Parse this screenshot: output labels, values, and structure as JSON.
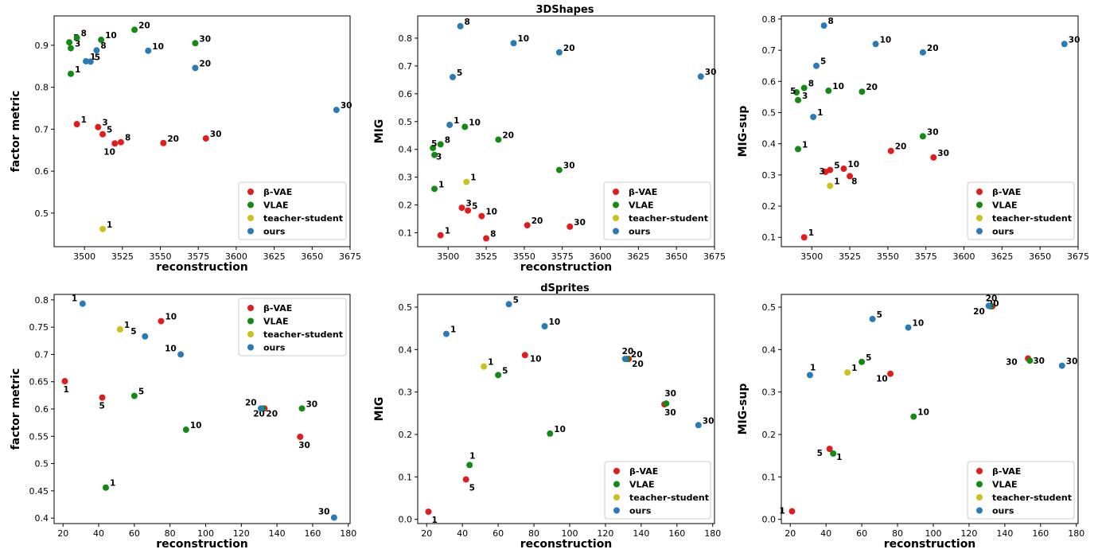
{
  "colors": {
    "beta_vae": "#e41a1c",
    "vlae": "#138a13",
    "teacher_student": "#c8c21a",
    "ours": "#2a7ab5"
  },
  "legend": [
    {
      "key": "beta_vae",
      "label": "β-VAE"
    },
    {
      "key": "vlae",
      "label": "VLAE"
    },
    {
      "key": "teacher_student",
      "label": "teacher-student"
    },
    {
      "key": "ours",
      "label": "ours"
    }
  ],
  "row_titles": {
    "top": "3DShapes",
    "bottom": "dSprites"
  },
  "chart_data": [
    {
      "type": "scatter",
      "dataset": "3DShapes",
      "xlabel": "reconstruction",
      "ylabel": "factor metric",
      "xlim": [
        3480,
        3675
      ],
      "ylim": [
        0.42,
        0.97
      ],
      "xticks": [
        3500,
        3525,
        3550,
        3575,
        3600,
        3625,
        3650,
        3675
      ],
      "yticks": [
        0.5,
        0.6,
        0.7,
        0.8,
        0.9
      ],
      "legend_position": "lower-right",
      "series": [
        {
          "name": "β-VAE",
          "color_key": "beta_vae",
          "points": [
            {
              "x": 3495,
              "y": 0.712,
              "label": "1"
            },
            {
              "x": 3509,
              "y": 0.705,
              "label": "3"
            },
            {
              "x": 3512,
              "y": 0.688,
              "label": "5"
            },
            {
              "x": 3524,
              "y": 0.669,
              "label": "8"
            },
            {
              "x": 3520,
              "y": 0.666,
              "label": "10"
            },
            {
              "x": 3552,
              "y": 0.667,
              "label": "20"
            },
            {
              "x": 3580,
              "y": 0.678,
              "label": "30"
            }
          ]
        },
        {
          "name": "VLAE",
          "color_key": "vlae",
          "points": [
            {
              "x": 3491,
              "y": 0.832,
              "label": "1"
            },
            {
              "x": 3491,
              "y": 0.893,
              "label": "3"
            },
            {
              "x": 3490,
              "y": 0.907,
              "label": "5"
            },
            {
              "x": 3495,
              "y": 0.918,
              "label": "8"
            },
            {
              "x": 3511,
              "y": 0.913,
              "label": "10"
            },
            {
              "x": 3533,
              "y": 0.937,
              "label": "20"
            },
            {
              "x": 3573,
              "y": 0.905,
              "label": "30"
            }
          ]
        },
        {
          "name": "teacher-student",
          "color_key": "teacher_student",
          "points": [
            {
              "x": 3512,
              "y": 0.462,
              "label": "1"
            }
          ]
        },
        {
          "name": "ours",
          "color_key": "ours",
          "points": [
            {
              "x": 3501,
              "y": 0.862,
              "label": "1"
            },
            {
              "x": 3504,
              "y": 0.861,
              "label": "5"
            },
            {
              "x": 3508,
              "y": 0.888,
              "label": "8"
            },
            {
              "x": 3542,
              "y": 0.887,
              "label": "10"
            },
            {
              "x": 3573,
              "y": 0.846,
              "label": "20"
            },
            {
              "x": 3666,
              "y": 0.746,
              "label": "30"
            }
          ]
        }
      ]
    },
    {
      "type": "scatter",
      "dataset": "3DShapes",
      "xlabel": "reconstruction",
      "ylabel": "MIG",
      "xlim": [
        3480,
        3675
      ],
      "ylim": [
        0.05,
        0.88
      ],
      "xticks": [
        3500,
        3525,
        3550,
        3575,
        3600,
        3625,
        3650,
        3675
      ],
      "yticks": [
        0.1,
        0.2,
        0.3,
        0.4,
        0.5,
        0.6,
        0.7,
        0.8
      ],
      "legend_position": "lower-right",
      "series": [
        {
          "name": "β-VAE",
          "color_key": "beta_vae",
          "points": [
            {
              "x": 3495,
              "y": 0.091,
              "label": "1"
            },
            {
              "x": 3509,
              "y": 0.19,
              "label": "3"
            },
            {
              "x": 3513,
              "y": 0.18,
              "label": "5"
            },
            {
              "x": 3525,
              "y": 0.08,
              "label": "8"
            },
            {
              "x": 3522,
              "y": 0.16,
              "label": "10"
            },
            {
              "x": 3552,
              "y": 0.127,
              "label": "20"
            },
            {
              "x": 3580,
              "y": 0.122,
              "label": "30"
            }
          ]
        },
        {
          "name": "VLAE",
          "color_key": "vlae",
          "points": [
            {
              "x": 3491,
              "y": 0.258,
              "label": "1"
            },
            {
              "x": 3491,
              "y": 0.38,
              "label": "3"
            },
            {
              "x": 3490,
              "y": 0.405,
              "label": "5"
            },
            {
              "x": 3495,
              "y": 0.418,
              "label": "8"
            },
            {
              "x": 3511,
              "y": 0.481,
              "label": "10"
            },
            {
              "x": 3533,
              "y": 0.435,
              "label": "20"
            },
            {
              "x": 3573,
              "y": 0.326,
              "label": "30"
            }
          ]
        },
        {
          "name": "teacher-student",
          "color_key": "teacher_student",
          "points": [
            {
              "x": 3512,
              "y": 0.283,
              "label": "1"
            }
          ]
        },
        {
          "name": "ours",
          "color_key": "ours",
          "points": [
            {
              "x": 3501,
              "y": 0.488,
              "label": "1"
            },
            {
              "x": 3503,
              "y": 0.66,
              "label": "5"
            },
            {
              "x": 3508,
              "y": 0.843,
              "label": "8"
            },
            {
              "x": 3543,
              "y": 0.782,
              "label": "10"
            },
            {
              "x": 3573,
              "y": 0.749,
              "label": "20"
            },
            {
              "x": 3666,
              "y": 0.662,
              "label": "30"
            }
          ]
        }
      ]
    },
    {
      "type": "scatter",
      "dataset": "3DShapes",
      "xlabel": "",
      "ylabel": "MIG-sup",
      "xlim": [
        3480,
        3675
      ],
      "ylim": [
        0.07,
        0.81
      ],
      "xticks": [
        3500,
        3525,
        3550,
        3575,
        3600,
        3625,
        3650,
        3675
      ],
      "yticks": [
        0.1,
        0.2,
        0.3,
        0.4,
        0.5,
        0.6,
        0.7,
        0.8
      ],
      "legend_position": "lower-right",
      "series": [
        {
          "name": "β-VAE",
          "color_key": "beta_vae",
          "points": [
            {
              "x": 3495,
              "y": 0.1,
              "label": "1"
            },
            {
              "x": 3509,
              "y": 0.31,
              "label": "3"
            },
            {
              "x": 3512,
              "y": 0.316,
              "label": "5"
            },
            {
              "x": 3525,
              "y": 0.296,
              "label": "8"
            },
            {
              "x": 3521,
              "y": 0.32,
              "label": "10"
            },
            {
              "x": 3552,
              "y": 0.377,
              "label": "20"
            },
            {
              "x": 3580,
              "y": 0.356,
              "label": "30"
            }
          ]
        },
        {
          "name": "VLAE",
          "color_key": "vlae",
          "points": [
            {
              "x": 3491,
              "y": 0.383,
              "label": "1"
            },
            {
              "x": 3491,
              "y": 0.54,
              "label": "3"
            },
            {
              "x": 3490,
              "y": 0.565,
              "label": "5"
            },
            {
              "x": 3495,
              "y": 0.579,
              "label": "8"
            },
            {
              "x": 3511,
              "y": 0.57,
              "label": "10"
            },
            {
              "x": 3533,
              "y": 0.567,
              "label": "20"
            },
            {
              "x": 3573,
              "y": 0.424,
              "label": "30"
            }
          ]
        },
        {
          "name": "teacher-student",
          "color_key": "teacher_student",
          "points": [
            {
              "x": 3512,
              "y": 0.265,
              "label": "1"
            }
          ]
        },
        {
          "name": "ours",
          "color_key": "ours",
          "points": [
            {
              "x": 3501,
              "y": 0.486,
              "label": "1"
            },
            {
              "x": 3503,
              "y": 0.65,
              "label": "5"
            },
            {
              "x": 3508,
              "y": 0.779,
              "label": "8"
            },
            {
              "x": 3542,
              "y": 0.72,
              "label": "10"
            },
            {
              "x": 3573,
              "y": 0.693,
              "label": "20"
            },
            {
              "x": 3666,
              "y": 0.72,
              "label": "30"
            }
          ]
        }
      ]
    },
    {
      "type": "scatter",
      "dataset": "dSprites",
      "xlabel": "reconstruction",
      "ylabel": "factor metric",
      "xlim": [
        15,
        181
      ],
      "ylim": [
        0.39,
        0.81
      ],
      "xticks": [
        20,
        40,
        60,
        80,
        100,
        120,
        140,
        160,
        180
      ],
      "yticks": [
        0.4,
        0.45,
        0.5,
        0.55,
        0.6,
        0.65,
        0.7,
        0.75,
        0.8
      ],
      "legend_position": "upper-center",
      "series": [
        {
          "name": "β-VAE",
          "color_key": "beta_vae",
          "points": [
            {
              "x": 21,
              "y": 0.651,
              "label": "1"
            },
            {
              "x": 42,
              "y": 0.621,
              "label": "5"
            },
            {
              "x": 75,
              "y": 0.761,
              "label": "10"
            },
            {
              "x": 133,
              "y": 0.601,
              "label": "20"
            },
            {
              "x": 153,
              "y": 0.549,
              "label": "30"
            }
          ]
        },
        {
          "name": "VLAE",
          "color_key": "vlae",
          "points": [
            {
              "x": 44,
              "y": 0.456,
              "label": "1"
            },
            {
              "x": 60,
              "y": 0.624,
              "label": "5"
            },
            {
              "x": 89,
              "y": 0.562,
              "label": "10"
            },
            {
              "x": 132,
              "y": 0.601,
              "label": "20"
            },
            {
              "x": 154,
              "y": 0.601,
              "label": "30"
            }
          ]
        },
        {
          "name": "teacher-student",
          "color_key": "teacher_student",
          "points": [
            {
              "x": 52,
              "y": 0.746,
              "label": "1"
            }
          ]
        },
        {
          "name": "ours",
          "color_key": "ours",
          "points": [
            {
              "x": 31,
              "y": 0.793,
              "label": "1"
            },
            {
              "x": 66,
              "y": 0.733,
              "label": "5"
            },
            {
              "x": 86,
              "y": 0.7,
              "label": "10"
            },
            {
              "x": 131,
              "y": 0.601,
              "label": "20"
            },
            {
              "x": 172,
              "y": 0.401,
              "label": "30"
            }
          ]
        }
      ]
    },
    {
      "type": "scatter",
      "dataset": "dSprites",
      "xlabel": "reconstruction",
      "ylabel": "MIG",
      "xlim": [
        15,
        181
      ],
      "ylim": [
        -0.01,
        0.53
      ],
      "xticks": [
        20,
        40,
        60,
        80,
        100,
        120,
        140,
        160,
        180
      ],
      "yticks": [
        0.0,
        0.1,
        0.2,
        0.3,
        0.4,
        0.5
      ],
      "legend_position": "lower-right",
      "series": [
        {
          "name": "β-VAE",
          "color_key": "beta_vae",
          "points": [
            {
              "x": 21,
              "y": 0.018,
              "label": "1"
            },
            {
              "x": 42,
              "y": 0.094,
              "label": "5"
            },
            {
              "x": 75,
              "y": 0.387,
              "label": "10"
            },
            {
              "x": 133,
              "y": 0.378,
              "label": "20"
            },
            {
              "x": 153,
              "y": 0.271,
              "label": "30"
            }
          ]
        },
        {
          "name": "VLAE",
          "color_key": "vlae",
          "points": [
            {
              "x": 44,
              "y": 0.128,
              "label": "1"
            },
            {
              "x": 60,
              "y": 0.34,
              "label": "5"
            },
            {
              "x": 89,
              "y": 0.202,
              "label": "10"
            },
            {
              "x": 132,
              "y": 0.378,
              "label": "20"
            },
            {
              "x": 154,
              "y": 0.273,
              "label": "30"
            }
          ]
        },
        {
          "name": "teacher-student",
          "color_key": "teacher_student",
          "points": [
            {
              "x": 52,
              "y": 0.36,
              "label": "1"
            }
          ]
        },
        {
          "name": "ours",
          "color_key": "ours",
          "points": [
            {
              "x": 31,
              "y": 0.437,
              "label": "1"
            },
            {
              "x": 66,
              "y": 0.507,
              "label": "5"
            },
            {
              "x": 86,
              "y": 0.455,
              "label": "10"
            },
            {
              "x": 131,
              "y": 0.378,
              "label": "20"
            },
            {
              "x": 172,
              "y": 0.222,
              "label": "30"
            }
          ]
        }
      ]
    },
    {
      "type": "scatter",
      "dataset": "dSprites",
      "xlabel": "reconstruction",
      "ylabel": "MIG-sup",
      "xlim": [
        15,
        181
      ],
      "ylim": [
        -0.01,
        0.53
      ],
      "xticks": [
        20,
        40,
        60,
        80,
        100,
        120,
        140,
        160,
        180
      ],
      "yticks": [
        0.0,
        0.1,
        0.2,
        0.3,
        0.4,
        0.5
      ],
      "legend_position": "lower-right",
      "series": [
        {
          "name": "β-VAE",
          "color_key": "beta_vae",
          "points": [
            {
              "x": 21,
              "y": 0.019,
              "label": "1"
            },
            {
              "x": 42,
              "y": 0.166,
              "label": "5"
            },
            {
              "x": 76,
              "y": 0.343,
              "label": "10"
            },
            {
              "x": 133,
              "y": 0.502,
              "label": "20"
            },
            {
              "x": 153,
              "y": 0.379,
              "label": "30"
            }
          ]
        },
        {
          "name": "VLAE",
          "color_key": "vlae",
          "points": [
            {
              "x": 44,
              "y": 0.155,
              "label": "1"
            },
            {
              "x": 60,
              "y": 0.371,
              "label": "5"
            },
            {
              "x": 89,
              "y": 0.242,
              "label": "10"
            },
            {
              "x": 132,
              "y": 0.502,
              "label": "20"
            },
            {
              "x": 154,
              "y": 0.374,
              "label": "30"
            }
          ]
        },
        {
          "name": "teacher-student",
          "color_key": "teacher_student",
          "points": [
            {
              "x": 52,
              "y": 0.346,
              "label": "1"
            }
          ]
        },
        {
          "name": "ours",
          "color_key": "ours",
          "points": [
            {
              "x": 31,
              "y": 0.34,
              "label": "1"
            },
            {
              "x": 66,
              "y": 0.472,
              "label": "5"
            },
            {
              "x": 86,
              "y": 0.452,
              "label": "10"
            },
            {
              "x": 131,
              "y": 0.503,
              "label": "20"
            },
            {
              "x": 172,
              "y": 0.362,
              "label": "30"
            }
          ]
        }
      ]
    }
  ]
}
